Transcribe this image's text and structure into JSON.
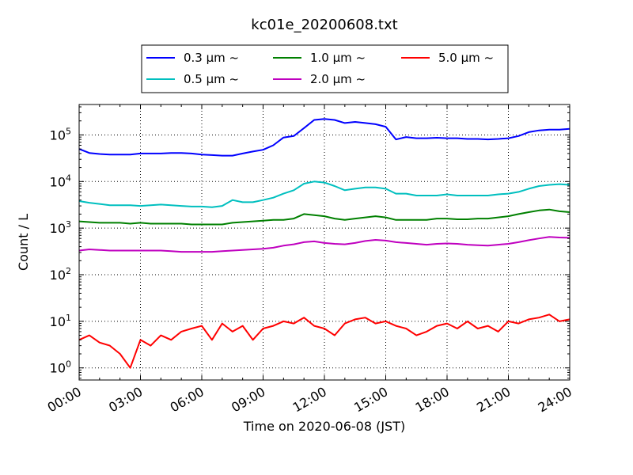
{
  "chart_data": {
    "type": "line",
    "title": "kc01e_20200608.txt",
    "xlabel": "Time on 2020-06-08 (JST)",
    "ylabel": "Count / L",
    "yscale": "log",
    "ylim": [
      0.55,
      450000
    ],
    "xlim": [
      "00:00",
      "24:00"
    ],
    "xtick_labels": [
      "00:00",
      "03:00",
      "06:00",
      "09:00",
      "12:00",
      "15:00",
      "18:00",
      "21:00",
      "24:00"
    ],
    "ytick_labels": [
      {
        "base": "10",
        "exp": "0"
      },
      {
        "base": "10",
        "exp": "1"
      },
      {
        "base": "10",
        "exp": "2"
      },
      {
        "base": "10",
        "exp": "3"
      },
      {
        "base": "10",
        "exp": "4"
      },
      {
        "base": "10",
        "exp": "5"
      }
    ],
    "grid": true,
    "legend_position": "top",
    "x_hours": [
      0,
      0.5,
      1,
      1.5,
      2,
      2.5,
      3,
      3.5,
      4,
      4.5,
      5,
      5.5,
      6,
      6.5,
      7,
      7.5,
      8,
      8.5,
      9,
      9.5,
      10,
      10.5,
      11,
      11.5,
      12,
      12.5,
      13,
      13.5,
      14,
      14.5,
      15,
      15.5,
      16,
      16.5,
      17,
      17.5,
      18,
      18.5,
      19,
      19.5,
      20,
      20.5,
      21,
      21.5,
      22,
      22.5,
      23,
      23.5,
      24
    ],
    "series": [
      {
        "name": "0.3 μm ~",
        "color": "#0000ff",
        "values": [
          50000,
          41000,
          39000,
          38000,
          38000,
          38000,
          40000,
          40000,
          40000,
          41000,
          41000,
          40000,
          38000,
          37000,
          36000,
          36000,
          40000,
          44000,
          48000,
          60000,
          88000,
          95000,
          140000,
          210000,
          220000,
          210000,
          180000,
          190000,
          180000,
          170000,
          150000,
          80000,
          90000,
          85000,
          85000,
          87000,
          85000,
          85000,
          82000,
          82000,
          80000,
          82000,
          85000,
          95000,
          115000,
          125000,
          130000,
          130000,
          135000
        ]
      },
      {
        "name": "0.5 μm ~",
        "color": "#00bfbf",
        "values": [
          3800,
          3500,
          3300,
          3100,
          3100,
          3100,
          3000,
          3100,
          3200,
          3100,
          3000,
          2900,
          2900,
          2800,
          3000,
          4000,
          3600,
          3600,
          4000,
          4500,
          5500,
          6500,
          9000,
          10000,
          9500,
          8000,
          6500,
          7000,
          7500,
          7500,
          7000,
          5500,
          5500,
          5000,
          5000,
          5000,
          5300,
          5000,
          5000,
          5000,
          5000,
          5300,
          5500,
          6000,
          7000,
          8000,
          8500,
          8800,
          8500
        ]
      },
      {
        "name": "1.0 μm ~",
        "color": "#008000",
        "values": [
          1400,
          1350,
          1300,
          1300,
          1300,
          1250,
          1300,
          1250,
          1250,
          1250,
          1250,
          1200,
          1200,
          1200,
          1200,
          1300,
          1350,
          1400,
          1450,
          1500,
          1500,
          1600,
          2000,
          1900,
          1800,
          1600,
          1500,
          1600,
          1700,
          1800,
          1700,
          1500,
          1500,
          1500,
          1500,
          1600,
          1600,
          1550,
          1550,
          1600,
          1600,
          1700,
          1800,
          2000,
          2200,
          2400,
          2500,
          2300,
          2200
        ]
      },
      {
        "name": "2.0 μm ~",
        "color": "#bf00bf",
        "values": [
          330,
          350,
          340,
          330,
          330,
          330,
          330,
          330,
          330,
          320,
          310,
          310,
          310,
          310,
          320,
          330,
          340,
          350,
          360,
          380,
          420,
          450,
          500,
          520,
          480,
          460,
          450,
          480,
          530,
          560,
          540,
          500,
          480,
          460,
          440,
          460,
          470,
          460,
          440,
          430,
          420,
          440,
          460,
          500,
          550,
          600,
          650,
          630,
          620
        ]
      },
      {
        "name": "5.0 μm ~",
        "color": "#ff0000",
        "values": [
          4,
          5,
          3.5,
          3,
          2,
          1,
          4,
          3,
          5,
          4,
          6,
          7,
          8,
          4,
          9,
          6,
          8,
          4,
          7,
          8,
          10,
          9,
          12,
          8,
          7,
          5,
          9,
          11,
          12,
          9,
          10,
          8,
          7,
          5,
          6,
          8,
          9,
          7,
          10,
          7,
          8,
          6,
          10,
          9,
          11,
          12,
          14,
          10,
          11
        ]
      }
    ]
  }
}
